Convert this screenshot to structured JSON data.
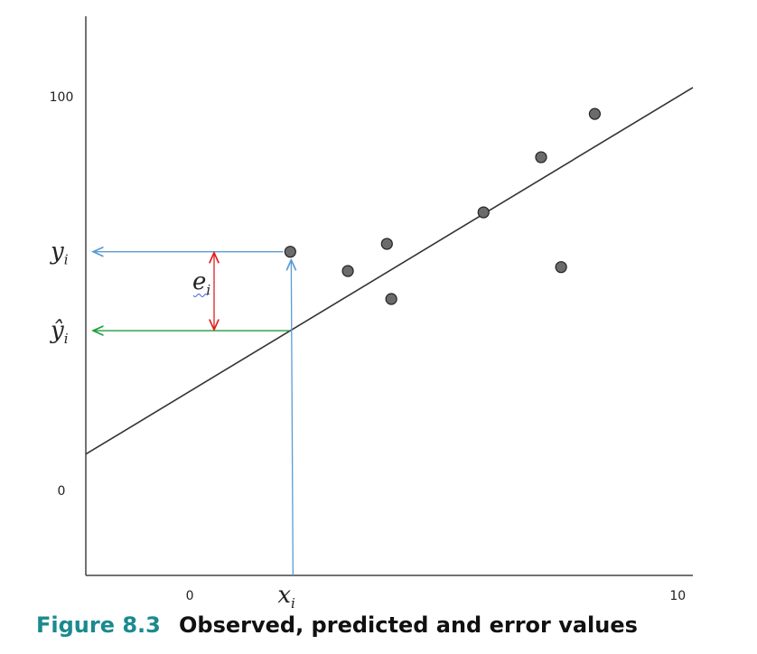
{
  "chart_data": {
    "type": "scatter",
    "x": [
      2.06,
      3.24,
      4.04,
      4.13,
      6.02,
      7.2,
      7.61,
      8.3
    ],
    "values": [
      60.6,
      55.7,
      62.6,
      48.6,
      70.6,
      84.6,
      56.7,
      95.6
    ],
    "color": "#6b6b6b",
    "line": {
      "x": [
        -2.13,
        10.31
      ],
      "y": [
        9.2,
        102.3
      ],
      "color": "#333333"
    },
    "xlim": [
      -2.13,
      10.31
    ],
    "xticks": [
      0,
      10
    ],
    "ylim": [
      -21.6,
      120.4
    ],
    "yticks": [
      0,
      100
    ],
    "highlight": 0,
    "annotations": {
      "observed": {
        "base": "y",
        "sub": "i"
      },
      "predicted": {
        "base": "ŷ",
        "sub": "i"
      },
      "x_value": {
        "base": "x",
        "sub": "i"
      },
      "error": {
        "base": "e",
        "sub": "i"
      }
    },
    "caption": {
      "number": "Figure 8.3",
      "text": "Observed, predicted and error values"
    }
  }
}
